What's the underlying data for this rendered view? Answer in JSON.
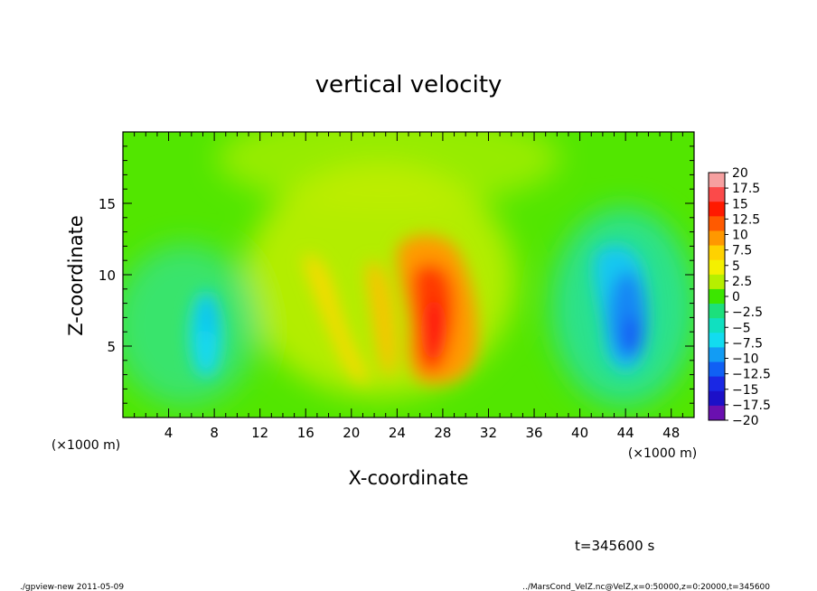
{
  "chart_data": {
    "type": "heatmap",
    "title": "vertical velocity",
    "xlabel": "X-coordinate",
    "ylabel": "Z-coordinate",
    "x_unit": "(×1000 m)",
    "y_unit": "(×1000 m)",
    "xlim": [
      0,
      50
    ],
    "ylim": [
      0,
      20
    ],
    "x_ticks": [
      4,
      8,
      12,
      16,
      20,
      24,
      28,
      32,
      36,
      40,
      44,
      48
    ],
    "y_ticks": [
      5,
      10,
      15
    ],
    "x_tick_labels": [
      "4",
      "8",
      "12",
      "16",
      "20",
      "24",
      "28",
      "32",
      "36",
      "40",
      "44",
      "48"
    ],
    "y_tick_labels": [
      "5",
      "10",
      "15"
    ],
    "colorbar": {
      "levels": [
        20,
        17.5,
        15,
        12.5,
        10,
        7.5,
        5,
        2.5,
        0,
        -2.5,
        -5,
        -7.5,
        -10,
        -12.5,
        -15,
        -17.5,
        -20
      ],
      "labels": [
        "20",
        "17.5",
        "15",
        "12.5",
        "10",
        "7.5",
        "5",
        "2.5",
        "0",
        "−2.5",
        "−5",
        "−7.5",
        "−10",
        "−12.5",
        "−15",
        "−17.5",
        "−20"
      ],
      "colors": [
        "#f6a0a0",
        "#fb4a4a",
        "#ff1a00",
        "#ff5a00",
        "#ff9800",
        "#ffd200",
        "#f4f000",
        "#b6ef00",
        "#3ce600",
        "#1ce07c",
        "#10e0c0",
        "#12dcf0",
        "#129cf4",
        "#1060f4",
        "#1a28e4",
        "#1c10c8",
        "#6a10b0"
      ]
    },
    "features": [
      {
        "type": "updraft core",
        "x": 27,
        "z_range": [
          3,
          12.5
        ],
        "max_value": 15
      },
      {
        "type": "updraft band",
        "x_range": [
          16,
          24
        ],
        "z_range": [
          3,
          11
        ],
        "max_value": 7.5
      },
      {
        "type": "downdraft",
        "x": 44,
        "z_range": [
          3,
          12
        ],
        "min_value": -12.5
      },
      {
        "type": "downdraft",
        "x": 7.5,
        "z_range": [
          3,
          8
        ],
        "min_value": -7.5
      }
    ]
  },
  "annotations": {
    "time": "t=345600 s",
    "footer_left": "./gpview-new  2011-05-09",
    "footer_right": "../MarsCond_VelZ.nc@VelZ,x=0:50000,z=0:20000,t=345600"
  }
}
